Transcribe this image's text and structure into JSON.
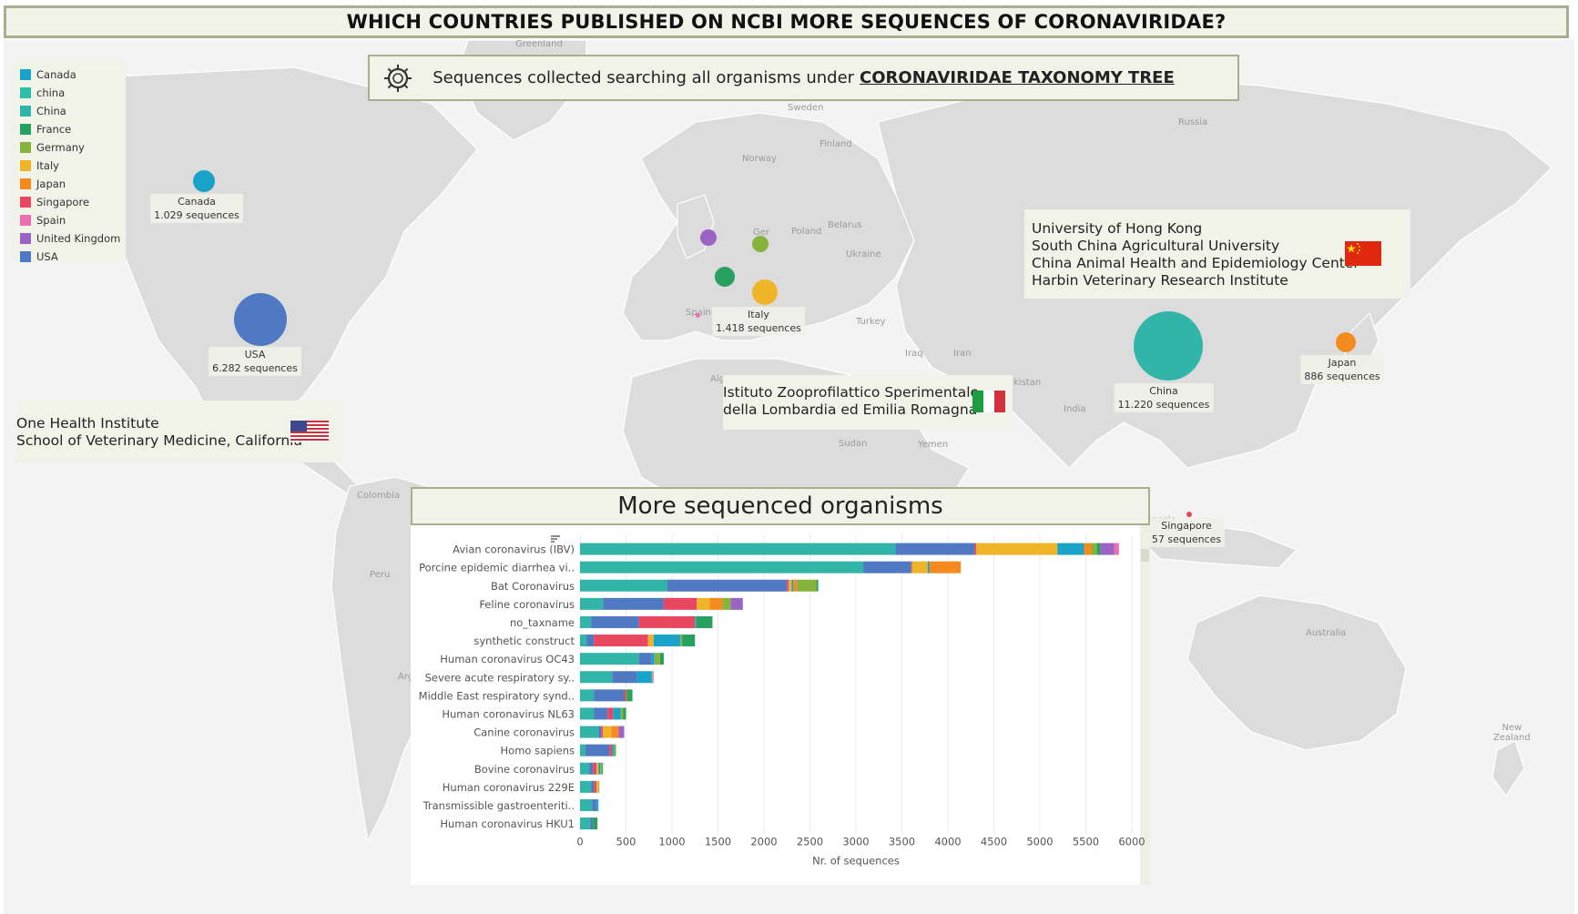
{
  "title": "WHICH COUNTRIES PUBLISHED ON NCBI MORE SEQUENCES OF CORONAVIRIDAE?",
  "subtitle": {
    "prefix": "Sequences collected searching all organisms under",
    "link": "CORONAVIRIDAE TAXONOMY TREE",
    "icon": "virus-icon"
  },
  "legend": [
    {
      "name": "Canada",
      "color": "#1aa3c8"
    },
    {
      "name": "china",
      "color": "#2cbfa7"
    },
    {
      "name": "China",
      "color": "#31b5a8"
    },
    {
      "name": "France",
      "color": "#27a060"
    },
    {
      "name": "Germany",
      "color": "#86b33c"
    },
    {
      "name": "Italy",
      "color": "#f0b429"
    },
    {
      "name": "Japan",
      "color": "#f58a1f"
    },
    {
      "name": "Singapore",
      "color": "#e8475f"
    },
    {
      "name": "Spain",
      "color": "#ea6fb0"
    },
    {
      "name": "United Kingdom",
      "color": "#9b63c4"
    },
    {
      "name": "USA",
      "color": "#4f79c2"
    }
  ],
  "map_labels": {
    "greenland": "Greenland",
    "sweden": "Sweden",
    "finland": "Finland",
    "russia": "Russia",
    "norway": "Norway",
    "poland": "Poland",
    "belarus": "Belarus",
    "ukraine": "Ukraine",
    "spain": "Spain",
    "turkey": "Turkey",
    "iraq": "Iraq",
    "iran": "Iran",
    "algeria": "Alg",
    "pakistan": "kistan",
    "india": "India",
    "sudan": "Sudan",
    "yemen": "Yemen",
    "colombia": "Colombia",
    "peru": "Peru",
    "arg": "Arg",
    "indonesia": "onesia",
    "australia": "Australia",
    "new_zealand": "New\nZealand",
    "germany": "Ger"
  },
  "bubbles": [
    {
      "country": "USA",
      "sequences": 6282,
      "name_label": "USA",
      "count_label": "6.282 sequences",
      "color": "#4f79c2"
    },
    {
      "country": "Canada",
      "sequences": 1029,
      "name_label": "Canada",
      "count_label": "1.029 sequences",
      "color": "#1aa3c8"
    },
    {
      "country": "Italy",
      "sequences": 1418,
      "name_label": "Italy",
      "count_label": "1.418 sequences",
      "color": "#f0b429"
    },
    {
      "country": "China",
      "sequences": 11220,
      "name_label": "China",
      "count_label": "11.220 sequences",
      "color": "#31b5a8"
    },
    {
      "country": "Japan",
      "sequences": 886,
      "name_label": "Japan",
      "count_label": "886 sequences",
      "color": "#f58a1f"
    },
    {
      "country": "Singapore",
      "sequences": 57,
      "name_label": "Singapore",
      "count_label": "57 sequences",
      "color": "#e8475f"
    },
    {
      "country": "United Kingdom",
      "color": "#9b63c4"
    },
    {
      "country": "Germany",
      "color": "#86b33c"
    },
    {
      "country": "France",
      "color": "#27a060"
    },
    {
      "country": "Spain",
      "color": "#ea6fb0"
    }
  ],
  "institutions": {
    "usa": {
      "lines": [
        "One Health Institute",
        "School of Veterinary Medicine, California"
      ],
      "flag": "usa-flag-icon"
    },
    "italy": {
      "lines": [
        "Istituto Zooprofilattico Sperimentale",
        "della Lombardia ed Emilia Romagna"
      ],
      "flag": "italy-flag-icon"
    },
    "china": {
      "lines": [
        "University of Hong Kong",
        "South China Agricultural University",
        "China Animal Health and Epidemiology Center",
        "Harbin Veterinary Research Institute"
      ],
      "flag": "china-flag-icon"
    }
  },
  "chart_data": {
    "type": "bar",
    "orientation": "horizontal",
    "stacked": true,
    "title": "More sequenced organisms",
    "xlabel": "Nr. of sequences",
    "ylabel": "",
    "xlim": [
      0,
      6000
    ],
    "xticks": [
      0,
      500,
      1000,
      1500,
      2000,
      2500,
      3000,
      3500,
      4000,
      4500,
      5000,
      5500,
      6000
    ],
    "grid": true,
    "categories": [
      "Avian coronavirus (IBV)",
      "Porcine epidemic diarrhea vi..",
      "Bat Coronavirus",
      "Feline coronavirus",
      "no_taxname",
      "synthetic construct",
      "Human coronavirus OC43",
      "Severe acute respiratory sy..",
      "Middle East respiratory synd..",
      "Human coronavirus NL63",
      "Canine coronavirus",
      "Homo sapiens",
      "Bovine coronavirus",
      "Human coronavirus 229E",
      "Transmissible gastroenteriti..",
      "Human coronavirus HKU1"
    ],
    "series": [
      {
        "name": "China",
        "color": "#31b5a8",
        "values": [
          3430,
          3080,
          950,
          250,
          120,
          70,
          640,
          350,
          150,
          150,
          200,
          60,
          100,
          120,
          130,
          110
        ]
      },
      {
        "name": "USA",
        "color": "#4f79c2",
        "values": [
          860,
          520,
          1300,
          660,
          520,
          80,
          140,
          270,
          330,
          150,
          30,
          260,
          40,
          30,
          50,
          30
        ]
      },
      {
        "name": "Singapore",
        "color": "#e8475f",
        "values": [
          20,
          10,
          20,
          360,
          610,
          590,
          0,
          0,
          20,
          60,
          20,
          30,
          40,
          30,
          0,
          0
        ]
      },
      {
        "name": "Italy",
        "color": "#f0b429",
        "values": [
          880,
          170,
          30,
          140,
          0,
          60,
          0,
          0,
          0,
          0,
          90,
          0,
          20,
          20,
          0,
          0
        ]
      },
      {
        "name": "Canada",
        "color": "#1aa3c8",
        "values": [
          290,
          20,
          20,
          0,
          10,
          290,
          30,
          160,
          0,
          80,
          0,
          20,
          20,
          0,
          20,
          0
        ]
      },
      {
        "name": "Japan",
        "color": "#f58a1f",
        "values": [
          80,
          340,
          40,
          140,
          0,
          0,
          0,
          0,
          0,
          0,
          80,
          0,
          0,
          0,
          0,
          0
        ]
      },
      {
        "name": "Germany",
        "color": "#86b33c",
        "values": [
          60,
          0,
          210,
          90,
          0,
          20,
          60,
          10,
          10,
          30,
          0,
          10,
          20,
          10,
          0,
          0
        ]
      },
      {
        "name": "France",
        "color": "#27a060",
        "values": [
          40,
          0,
          20,
          0,
          180,
          140,
          40,
          0,
          60,
          30,
          0,
          10,
          10,
          0,
          0,
          50
        ]
      },
      {
        "name": "United Kingdom",
        "color": "#9b63c4",
        "values": [
          150,
          0,
          0,
          130,
          0,
          0,
          0,
          0,
          0,
          0,
          60,
          0,
          0,
          0,
          0,
          0
        ]
      },
      {
        "name": "Spain",
        "color": "#ea6fb0",
        "values": [
          50,
          0,
          0,
          0,
          0,
          0,
          0,
          10,
          0,
          0,
          0,
          0,
          0,
          0,
          0,
          0
        ]
      }
    ]
  }
}
